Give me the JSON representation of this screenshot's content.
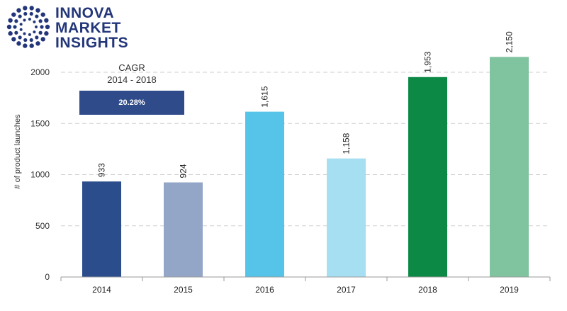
{
  "logo": {
    "lines": [
      "INNOVA",
      "MARKET",
      "INSIGHTS"
    ],
    "icon": "dotted-circle-logo"
  },
  "cagr": {
    "title": "CAGR",
    "period": "2014 - 2018",
    "value": "20.28%"
  },
  "chart_data": {
    "type": "bar",
    "categories": [
      "2014",
      "2015",
      "2016",
      "2017",
      "2018",
      "2019"
    ],
    "values": [
      933,
      924,
      1615,
      1158,
      1953,
      2150
    ],
    "labels": [
      "933",
      "924",
      "1,615",
      "1,158",
      "1,953",
      "2,150"
    ],
    "colors": [
      "#2b4d8c",
      "#94a6c8",
      "#55c4e8",
      "#a6dff2",
      "#0c8a45",
      "#80c39f"
    ],
    "ylabel": "# of product launches",
    "ylim": [
      0,
      2000
    ],
    "yticks": [
      0,
      500,
      1000,
      1500,
      2000
    ],
    "grid": true
  }
}
